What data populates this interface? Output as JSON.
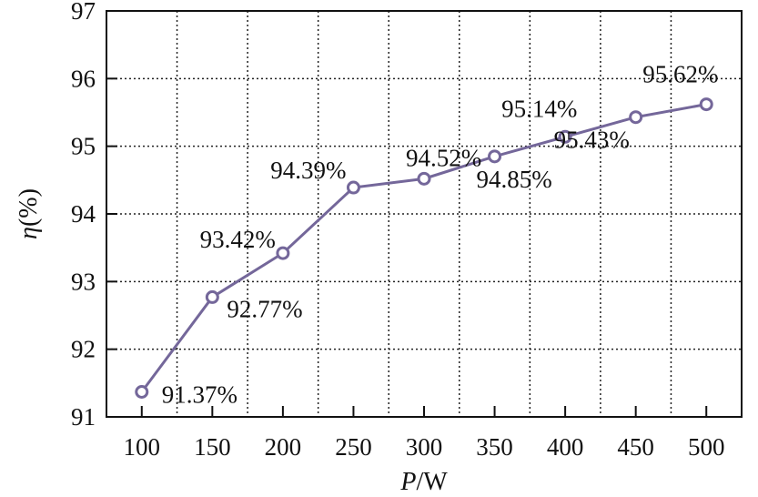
{
  "chart_data": {
    "type": "line",
    "title": "",
    "xlabel_italic": "P",
    "xlabel_rest": "/W",
    "ylabel_italic": "η",
    "ylabel_rest": "(%)",
    "x": [
      100,
      150,
      200,
      250,
      300,
      350,
      400,
      450,
      500
    ],
    "series": [
      {
        "values": [
          91.37,
          92.77,
          93.42,
          94.39,
          94.52,
          94.85,
          95.14,
          95.43,
          95.62
        ],
        "labels": [
          "91.37%",
          "92.77%",
          "93.42%",
          "94.39%",
          "94.52%",
          "94.85%",
          "95.14%",
          "95.43%",
          "95.62%"
        ],
        "color": "#74679a",
        "marker": "open-circle"
      }
    ],
    "xlim": [
      75,
      525
    ],
    "ylim": [
      91,
      97
    ],
    "xticks": [
      100,
      150,
      200,
      250,
      300,
      350,
      400,
      450,
      500
    ],
    "yticks": [
      91,
      92,
      93,
      94,
      95,
      96,
      97
    ],
    "grid": "dotted",
    "legend": "none"
  }
}
